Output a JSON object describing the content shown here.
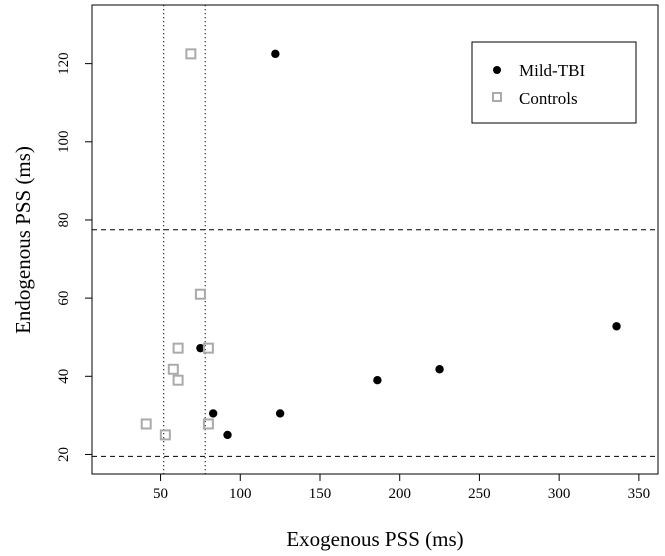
{
  "chart_data": {
    "type": "scatter",
    "xlabel": "Exogenous PSS (ms)",
    "ylabel": "Endogenous PSS (ms)",
    "xlim": [
      7,
      362
    ],
    "ylim": [
      15,
      135
    ],
    "xticks": [
      50,
      100,
      150,
      200,
      250,
      300,
      350
    ],
    "yticks": [
      20,
      40,
      60,
      80,
      100,
      120
    ],
    "grid": false,
    "legend": "top-right",
    "reference_lines": {
      "vertical_dotted": [
        52,
        78
      ],
      "horizontal_dashed": [
        19.5,
        77.5
      ]
    },
    "series": [
      {
        "name": "Mild-TBI",
        "marker": "filled-circle",
        "color": "#000000",
        "x": [
          122,
          75,
          83,
          92,
          125,
          186,
          225,
          336
        ],
        "y": [
          122.5,
          47.2,
          30.5,
          25,
          30.5,
          39,
          41.8,
          52.8
        ]
      },
      {
        "name": "Controls",
        "marker": "open-square",
        "color": "#aaaaaa",
        "x": [
          69,
          75,
          61,
          80,
          58,
          61,
          80,
          41,
          53
        ],
        "y": [
          122.5,
          61,
          47.2,
          47.2,
          41.8,
          39,
          27.8,
          27.8,
          25
        ]
      }
    ]
  }
}
